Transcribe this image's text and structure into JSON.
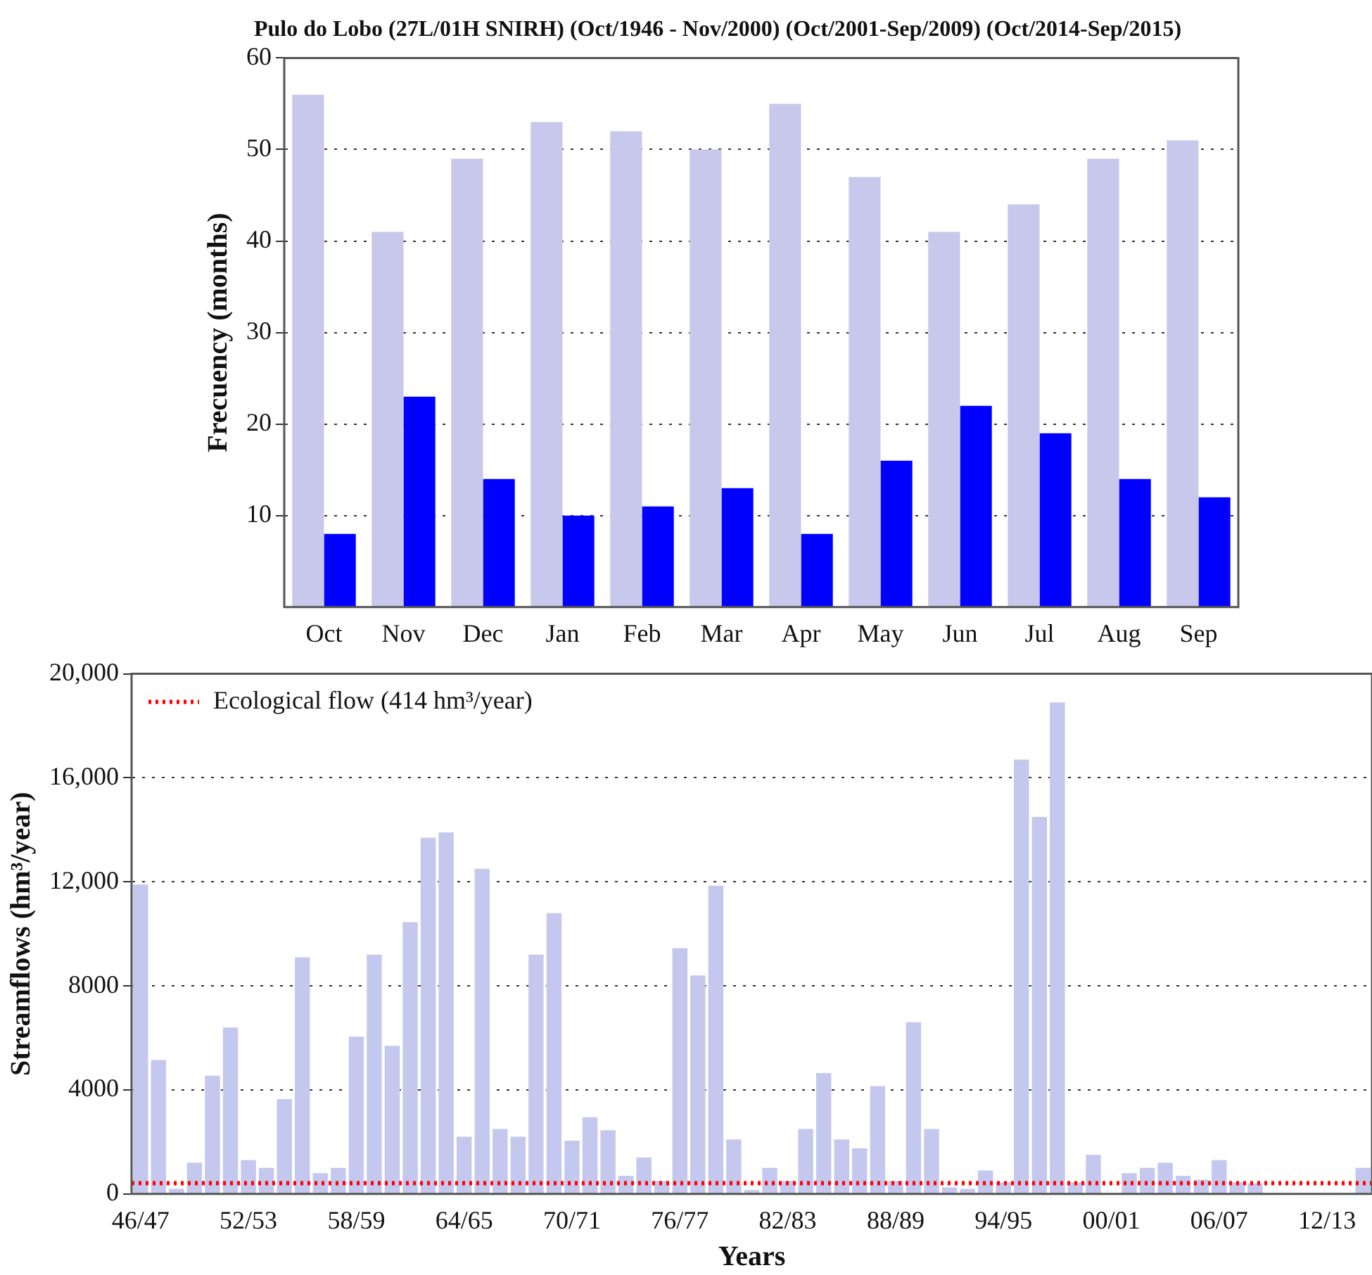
{
  "chart_data": [
    {
      "type": "bar",
      "title": "Pulo do Lobo (27L/01H SNIRH) (Oct/1946 - Nov/2000) (Oct/2001-Sep/2009) (Oct/2014-Sep/2015)",
      "ylabel": "Frecuency (months)",
      "categories": [
        "Oct",
        "Nov",
        "Dec",
        "Jan",
        "Feb",
        "Mar",
        "Apr",
        "May",
        "Jun",
        "Jul",
        "Aug",
        "Sep"
      ],
      "series": [
        {
          "color": "#c8c8ec",
          "values": [
            56,
            41,
            49,
            53,
            52,
            50,
            55,
            47,
            41,
            44,
            49,
            51
          ]
        },
        {
          "color": "#0000ff",
          "values": [
            8,
            23,
            14,
            10,
            11,
            13,
            8,
            16,
            22,
            19,
            14,
            12
          ]
        }
      ],
      "ylim": [
        0,
        60
      ],
      "yticks": [
        10,
        20,
        30,
        40,
        50,
        60
      ],
      "grid": "y",
      "legend": false
    },
    {
      "type": "bar",
      "xlabel": "Years",
      "ylabel": "Streamflows (hm³/year)",
      "categories": [
        "46/47",
        null,
        null,
        null,
        null,
        null,
        "52/53",
        null,
        null,
        null,
        null,
        null,
        "58/59",
        null,
        null,
        null,
        null,
        null,
        "64/65",
        null,
        null,
        null,
        null,
        null,
        "70/71",
        null,
        null,
        null,
        null,
        null,
        "76/77",
        null,
        null,
        null,
        null,
        null,
        "82/83",
        null,
        null,
        null,
        null,
        null,
        "88/89",
        null,
        null,
        null,
        null,
        null,
        "94/95",
        null,
        null,
        null,
        null,
        null,
        "00/01",
        null,
        null,
        null,
        null,
        null,
        "06/07",
        null,
        null,
        null,
        null,
        null,
        "12/13",
        null,
        null
      ],
      "series": [
        {
          "color": "#c5c8ee",
          "values": [
            11900,
            5150,
            200,
            1200,
            4550,
            6400,
            1300,
            1000,
            3650,
            9100,
            800,
            1000,
            6050,
            9200,
            5700,
            10450,
            13700,
            13900,
            2200,
            12500,
            2500,
            2200,
            9200,
            10800,
            2050,
            2950,
            2450,
            700,
            1400,
            500,
            9450,
            8400,
            11850,
            2100,
            150,
            1000,
            500,
            2500,
            4650,
            2100,
            1750,
            4150,
            500,
            6600,
            2500,
            250,
            200,
            900,
            450,
            16700,
            14500,
            18900,
            450,
            1500,
            null,
            800,
            1000,
            1200,
            700,
            550,
            1300,
            450,
            400,
            null,
            null,
            null,
            null,
            null,
            1000
          ]
        }
      ],
      "ylim": [
        0,
        20000
      ],
      "yticks": [
        0,
        4000,
        8000,
        {
          "value": 12000,
          "label": "12,000"
        },
        {
          "value": 16000,
          "label": "16,000"
        },
        {
          "value": 20000,
          "label": "20,000"
        }
      ],
      "ref_lines": [
        {
          "axis": "y",
          "value": 414,
          "label": "Ecological flow (414 hm³/year)",
          "color": "#ff0000",
          "line_style": "dotted"
        }
      ],
      "grid": "y",
      "legend": "top left"
    }
  ]
}
